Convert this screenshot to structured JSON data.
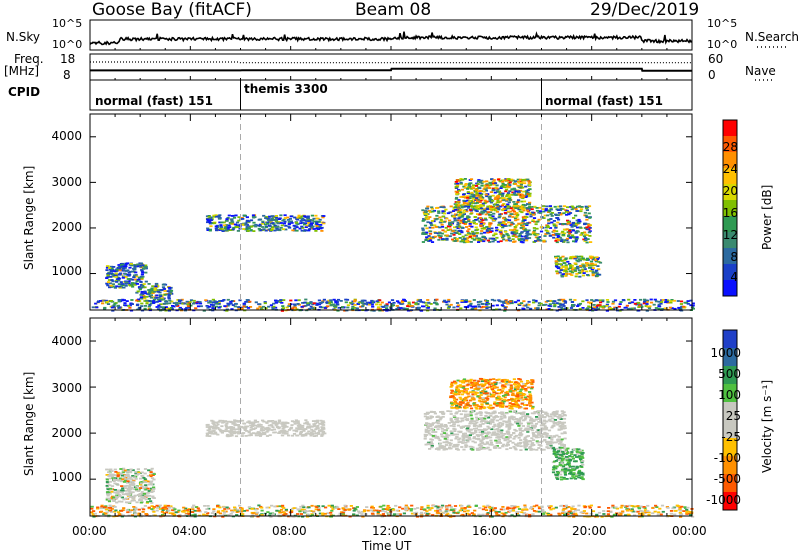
{
  "header": {
    "station": "Goose Bay (fitACF)",
    "beam": "Beam 08",
    "date": "29/Dec/2019"
  },
  "top_panels": {
    "nsky_label": "N.Sky",
    "nsky_ticks": [
      "10^5",
      "10^0"
    ],
    "nsearch_label": "N.Search",
    "nsearch_ticks": [
      "10^5",
      "10^0"
    ],
    "freq_label": "Freq.",
    "freq_unit": "[MHz]",
    "freq_ticks": [
      "18",
      "8"
    ],
    "nave_label": "Nave",
    "nave_ticks": [
      "60",
      "0"
    ],
    "cpid_label": "CPID",
    "cpid_segments": [
      {
        "name": "normal (fast) 151",
        "start": 0,
        "end": 6
      },
      {
        "name": "themis 3300",
        "start": 6,
        "end": 18
      },
      {
        "name": "normal (fast) 151",
        "start": 18,
        "end": 24
      }
    ],
    "freq_series": [
      [
        0,
        10.8
      ],
      [
        6,
        10.8
      ],
      [
        6.05,
        10.9
      ],
      [
        12,
        10.9
      ],
      [
        12.02,
        11.6
      ],
      [
        22,
        11.6
      ],
      [
        22.02,
        10.6
      ],
      [
        24,
        10.6
      ]
    ],
    "nave_series": [
      [
        0,
        42
      ],
      [
        5.9,
        42
      ],
      [
        6,
        40
      ],
      [
        24,
        40
      ]
    ]
  },
  "chart_data": [
    {
      "type": "heatmap",
      "panel": "power",
      "ylabel": "Slant Range [km]",
      "xlabel": "",
      "xlim": [
        0,
        24
      ],
      "ylim": [
        200,
        4500
      ],
      "x_ticks": [
        "00:00",
        "04:00",
        "08:00",
        "12:00",
        "16:00",
        "20:00",
        "00:00"
      ],
      "y_ticks": [
        1000,
        2000,
        3000,
        4000
      ],
      "colorbar_label": "Power [dB]",
      "colorbar_ticks": [
        "28",
        "24",
        "20",
        "16",
        "12",
        "8",
        "4"
      ],
      "colorbar_colors": [
        "#ff0000",
        "#ff5a00",
        "#ff9000",
        "#ffc000",
        "#d8d800",
        "#80c000",
        "#2e9a52",
        "#3a8a70",
        "#2c6aa0",
        "#1a40c8",
        "#0a10ff"
      ],
      "vertical_markers": [
        6,
        18
      ],
      "regions": [
        {
          "x": [
            4.6,
            9.3
          ],
          "y": [
            1950,
            2300
          ],
          "color_mix": [
            0,
            0.5,
            0.4,
            0.1
          ]
        },
        {
          "x": [
            0.6,
            2.2
          ],
          "y": [
            700,
            1250
          ],
          "color_mix": [
            0,
            0.6,
            0.3,
            0.1
          ]
        },
        {
          "x": [
            1.8,
            3.2
          ],
          "y": [
            400,
            800
          ],
          "color_mix": [
            0,
            0.4,
            0.4,
            0.2
          ]
        },
        {
          "x": [
            13.2,
            19.9
          ],
          "y": [
            1700,
            2500
          ],
          "color_mix": [
            0.1,
            0.3,
            0.4,
            0.2
          ]
        },
        {
          "x": [
            14.5,
            17.5
          ],
          "y": [
            2400,
            3100
          ],
          "color_mix": [
            0.1,
            0.2,
            0.4,
            0.3
          ]
        },
        {
          "x": [
            18.5,
            20.3
          ],
          "y": [
            950,
            1400
          ],
          "color_mix": [
            0,
            0.2,
            0.5,
            0.3
          ]
        },
        {
          "x": [
            0,
            24
          ],
          "y": [
            200,
            450
          ],
          "color_mix": [
            0.1,
            0.5,
            0.3,
            0.1
          ]
        }
      ]
    },
    {
      "type": "heatmap",
      "panel": "velocity",
      "ylabel": "Slant Range [km]",
      "xlabel": "Time UT",
      "xlim": [
        0,
        24
      ],
      "ylim": [
        200,
        4500
      ],
      "x_ticks": [
        "00:00",
        "04:00",
        "08:00",
        "12:00",
        "16:00",
        "20:00",
        "00:00"
      ],
      "y_ticks": [
        1000,
        2000,
        3000,
        4000
      ],
      "colorbar_label": "Velocity [m s⁻¹]",
      "colorbar_ticks": [
        "1000",
        "500",
        "100",
        "25",
        "-25",
        "-100",
        "-500",
        "-1000"
      ],
      "colorbar_colors": [
        "#2040c8",
        "#2c6aa0",
        "#2e9a52",
        "#50c040",
        "#c8c8c0",
        "#c8c8c0",
        "#ffc000",
        "#ff9000",
        "#ff5a00",
        "#ff0000"
      ],
      "vertical_markers": [
        6,
        18
      ],
      "regions": [
        {
          "x": [
            4.6,
            9.3
          ],
          "y": [
            1950,
            2300
          ],
          "color_mix": [
            0,
            0,
            1,
            0
          ]
        },
        {
          "x": [
            0.6,
            2.5
          ],
          "y": [
            500,
            1250
          ],
          "color_mix": [
            0.1,
            0.2,
            0.7,
            0
          ]
        },
        {
          "x": [
            13.3,
            18.9
          ],
          "y": [
            1650,
            2500
          ],
          "color_mix": [
            0,
            0.05,
            0.95,
            0
          ]
        },
        {
          "x": [
            14.3,
            17.6
          ],
          "y": [
            2550,
            3200
          ],
          "color_mix": [
            0.85,
            0.1,
            0.05,
            0
          ]
        },
        {
          "x": [
            18.4,
            19.6
          ],
          "y": [
            1000,
            1700
          ],
          "color_mix": [
            0,
            0.85,
            0.15,
            0
          ]
        },
        {
          "x": [
            0,
            24
          ],
          "y": [
            200,
            450
          ],
          "color_mix": [
            0.5,
            0.2,
            0.3,
            0
          ]
        }
      ]
    }
  ]
}
